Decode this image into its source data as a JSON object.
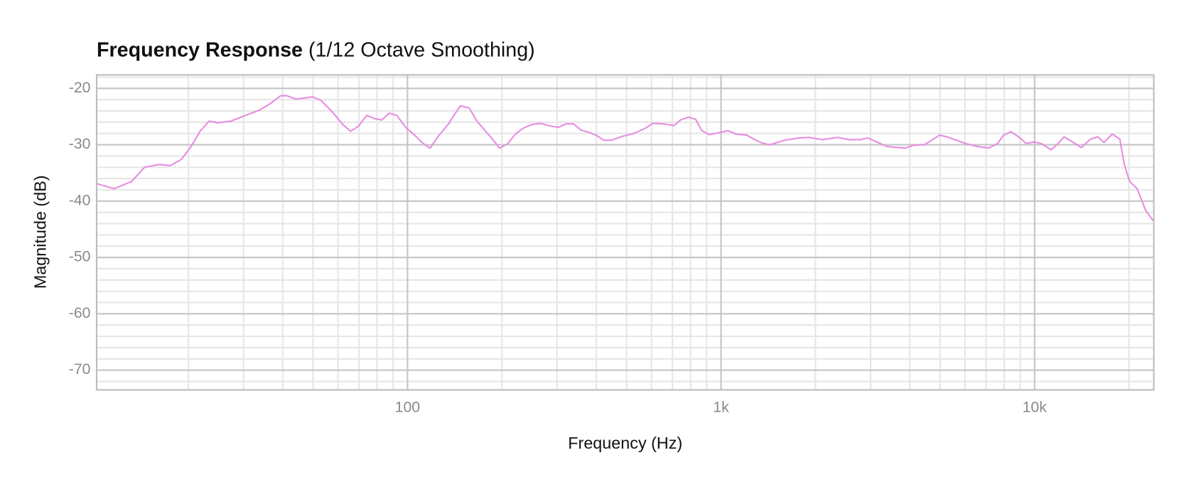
{
  "chart_data": {
    "type": "line",
    "title": "Frequency Response",
    "subtitle": "(1/12 Octave Smoothing)",
    "x_label": "Frequency (Hz)",
    "y_label": "Magnitude (dB)",
    "x_scale": "log",
    "grid": true,
    "color": "#e68ee0",
    "xlim": [
      10.2,
      24000
    ],
    "ylim": [
      -73.5,
      -17.6
    ],
    "xticks": [
      100,
      {
        "value": 1000,
        "label": "1k"
      },
      {
        "value": 10000,
        "label": "10k"
      }
    ],
    "xminorticks": [
      20,
      30,
      40,
      50,
      60,
      70,
      80,
      90,
      200,
      300,
      400,
      500,
      600,
      700,
      800,
      900,
      2000,
      3000,
      4000,
      5000,
      6000,
      7000,
      8000,
      9000,
      20000
    ],
    "yticks": [
      -70,
      -60,
      -50,
      -40,
      -30,
      -20
    ],
    "yminorticks": [
      -72,
      -68,
      -66,
      -64,
      -62,
      -58,
      -56,
      -54,
      -52,
      -48,
      -46,
      -44,
      -42,
      -38,
      -36,
      -34,
      -32,
      -28,
      -26,
      -24,
      -22,
      -18
    ],
    "x": [
      10.2,
      11.6,
      13.2,
      14.5,
      16.1,
      17.5,
      19.0,
      20.3,
      21.8,
      23.3,
      24.8,
      27.4,
      30.4,
      33.6,
      36.5,
      39.4,
      41.2,
      44.1,
      47.1,
      49.8,
      52.9,
      57.4,
      62.4,
      65.9,
      69.8,
      74.1,
      78.8,
      82.8,
      87.5,
      92.5,
      98.9,
      104.5,
      111.7,
      118.1,
      124.9,
      135.6,
      139.4,
      147.4,
      157.5,
      166.4,
      184,
      196.8,
      208.9,
      220.9,
      233.4,
      249.5,
      265.5,
      286.4,
      302.9,
      320.1,
      338.3,
      357.6,
      378.2,
      399.6,
      422.6,
      446.7,
      485.3,
      527.4,
      573,
      605.3,
      658,
      707.9,
      743.3,
      785.6,
      830,
      868,
      917,
      997,
      1054,
      1114,
      1210,
      1280,
      1352,
      1430,
      1597,
      1765,
      1906,
      2108,
      2355,
      2559,
      2780,
      2939,
      3141,
      3375,
      3665,
      3874,
      4098,
      4457,
      4977,
      5260,
      5559,
      6041,
      6564,
      7130,
      7621,
      7963,
      8414,
      8892,
      9410,
      9954,
      10520,
      11300,
      11880,
      12420,
      13120,
      14100,
      15070,
      15920,
      16640,
      17690,
      18700,
      19330,
      20090,
      21240,
      22590,
      23880
    ],
    "values": [
      -36.9,
      -37.8,
      -36.5,
      -34.0,
      -33.5,
      -33.7,
      -32.6,
      -30.5,
      -27.6,
      -25.8,
      -26.1,
      -25.8,
      -24.8,
      -23.9,
      -22.7,
      -21.3,
      -21.3,
      -21.9,
      -21.7,
      -21.5,
      -22.1,
      -24.1,
      -26.5,
      -27.6,
      -26.7,
      -24.8,
      -25.4,
      -25.6,
      -24.4,
      -24.8,
      -27.0,
      -28.1,
      -29.7,
      -30.6,
      -28.6,
      -26.2,
      -25.1,
      -23.1,
      -23.5,
      -25.8,
      -28.6,
      -30.6,
      -29.8,
      -28.1,
      -27.1,
      -26.4,
      -26.2,
      -26.7,
      -26.9,
      -26.3,
      -26.3,
      -27.4,
      -27.8,
      -28.3,
      -29.2,
      -29.2,
      -28.5,
      -28.0,
      -27.1,
      -26.2,
      -26.3,
      -26.6,
      -25.6,
      -25.1,
      -25.5,
      -27.5,
      -28.2,
      -27.8,
      -27.5,
      -28.1,
      -28.3,
      -29.1,
      -29.7,
      -30.0,
      -29.2,
      -28.8,
      -28.7,
      -29.1,
      -28.7,
      -29.1,
      -29.1,
      -28.8,
      -29.5,
      -30.3,
      -30.5,
      -30.6,
      -30.1,
      -30.0,
      -28.3,
      -28.6,
      -29.1,
      -29.8,
      -30.3,
      -30.6,
      -29.8,
      -28.3,
      -27.7,
      -28.6,
      -29.8,
      -29.5,
      -29.8,
      -30.9,
      -29.8,
      -28.6,
      -29.4,
      -30.5,
      -29.0,
      -28.6,
      -29.6,
      -28.1,
      -29.0,
      -33.5,
      -36.5,
      -37.8,
      -41.6,
      -43.5
    ]
  }
}
